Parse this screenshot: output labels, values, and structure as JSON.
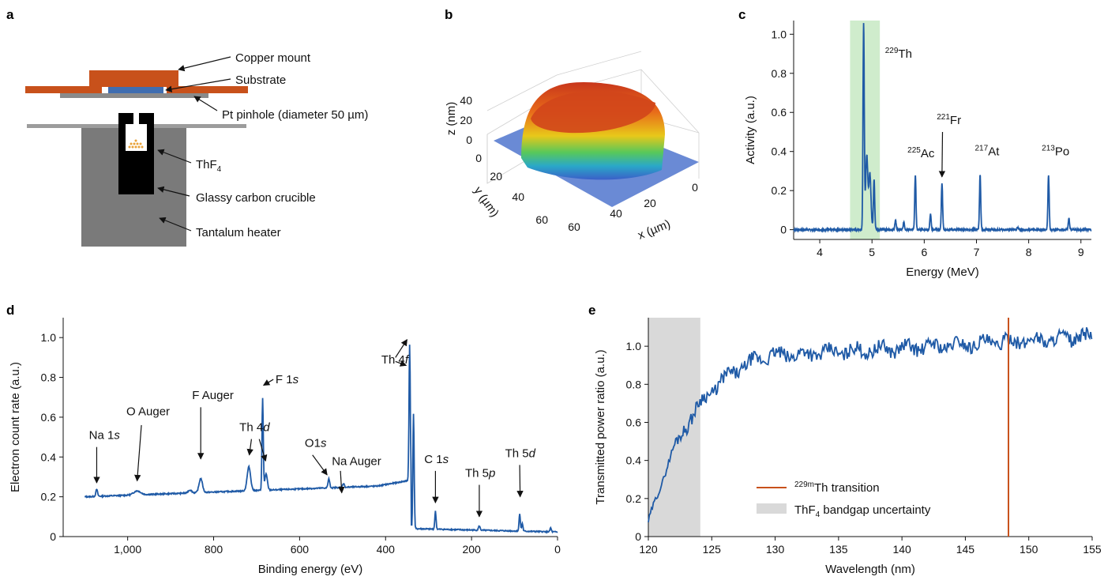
{
  "panels": {
    "a": {
      "label": "a",
      "annotations": {
        "copper_mount": "Copper mount",
        "substrate": "Substrate",
        "pinhole": "Pt pinhole (diameter 50 µm)",
        "thf4_main": "ThF",
        "thf4_sub": "4",
        "crucible": "Glassy carbon crucible",
        "heater": "Tantalum heater"
      },
      "colors": {
        "copper": "#c8511b",
        "substrate": "#3f6db0",
        "pt": "#8a8a8a",
        "heater": "#7a7a7a",
        "crucible": "#000000",
        "thf4": "#e8a23a"
      }
    },
    "b": {
      "label": "b",
      "zlabel": "z (nm)",
      "ylabel": "y (µm)",
      "xlabel": "x (µm)",
      "z_ticks": [
        "40",
        "20",
        "0"
      ],
      "y_ticks": [
        "0",
        "20",
        "40",
        "60"
      ],
      "x_ticks": [
        "0",
        "20",
        "40",
        "60"
      ]
    },
    "c": {
      "label": "c"
    },
    "d": {
      "label": "d"
    },
    "e": {
      "label": "e"
    }
  },
  "chart_data": [
    {
      "id": "c",
      "type": "line",
      "xlabel": "Energy (MeV)",
      "ylabel": "Activity (a.u.)",
      "xlim": [
        3.5,
        9.2
      ],
      "ylim": [
        -0.05,
        1.07
      ],
      "xticks": [
        4,
        5,
        6,
        7,
        8,
        9
      ],
      "yticks": [
        0,
        0.2,
        0.4,
        0.6,
        0.8,
        1.0
      ],
      "ytick_labels": [
        "0",
        "0.2",
        "0.4",
        "0.6",
        "0.8",
        "1.0"
      ],
      "shaded_band": {
        "x": [
          4.58,
          5.15
        ],
        "color": "#cfeccc"
      },
      "series_color": "#1f5aa6",
      "peaks": [
        {
          "x": 4.84,
          "h": 1.0,
          "w": 0.012
        },
        {
          "x": 4.9,
          "h": 0.35,
          "w": 0.02
        },
        {
          "x": 4.96,
          "h": 0.27,
          "w": 0.02
        },
        {
          "x": 5.04,
          "h": 0.25,
          "w": 0.012
        },
        {
          "x": 5.45,
          "h": 0.05,
          "w": 0.012
        },
        {
          "x": 5.61,
          "h": 0.04,
          "w": 0.012
        },
        {
          "x": 5.83,
          "h": 0.28,
          "w": 0.012
        },
        {
          "x": 6.12,
          "h": 0.08,
          "w": 0.012
        },
        {
          "x": 6.34,
          "h": 0.24,
          "w": 0.012
        },
        {
          "x": 7.07,
          "h": 0.28,
          "w": 0.012
        },
        {
          "x": 7.79,
          "h": 0.01,
          "w": 0.012
        },
        {
          "x": 8.38,
          "h": 0.28,
          "w": 0.012
        },
        {
          "x": 8.77,
          "h": 0.06,
          "w": 0.012
        }
      ],
      "annotations": [
        {
          "sup": "229",
          "main": "Th",
          "x": 5.25,
          "y": 0.88
        },
        {
          "sup": "225",
          "main": "Ac",
          "x": 5.68,
          "y": 0.37
        },
        {
          "sup": "221",
          "main": "Fr",
          "x": 6.24,
          "y": 0.54
        },
        {
          "sup": "217",
          "main": "At",
          "x": 6.97,
          "y": 0.38
        },
        {
          "sup": "213",
          "main": "Po",
          "x": 8.25,
          "y": 0.38
        }
      ]
    },
    {
      "id": "d",
      "type": "line",
      "xlabel": "Binding energy (eV)",
      "ylabel": "Electron count rate (a.u.)",
      "xlim": [
        1150,
        0
      ],
      "ylim": [
        0,
        1.1
      ],
      "xticks": [
        1000,
        800,
        600,
        400,
        200,
        0
      ],
      "xtick_labels": [
        "1,000",
        "800",
        "600",
        "400",
        "200",
        "0"
      ],
      "yticks": [
        0,
        0.2,
        0.4,
        0.6,
        0.8,
        1.0
      ],
      "ytick_labels": [
        "0",
        "0.2",
        "0.4",
        "0.6",
        "0.8",
        "1.0"
      ],
      "series_color": "#1f5aa6",
      "peaks": [
        {
          "x": 1072,
          "h": 0.035,
          "w": 2
        },
        {
          "x": 978,
          "h": 0.02,
          "w": 8
        },
        {
          "x": 830,
          "h": 0.07,
          "w": 4
        },
        {
          "x": 855,
          "h": 0.015,
          "w": 4
        },
        {
          "x": 718,
          "h": 0.12,
          "w": 4
        },
        {
          "x": 686,
          "h": 0.46,
          "w": 1.5
        },
        {
          "x": 678,
          "h": 0.08,
          "w": 3
        },
        {
          "x": 532,
          "h": 0.045,
          "w": 2
        },
        {
          "x": 498,
          "h": 0.02,
          "w": 2
        },
        {
          "x": 344,
          "h": 0.68,
          "w": 1.5
        },
        {
          "x": 335,
          "h": 0.58,
          "w": 1.5
        },
        {
          "x": 284,
          "h": 0.09,
          "w": 1.5
        },
        {
          "x": 182,
          "h": 0.02,
          "w": 2
        },
        {
          "x": 88,
          "h": 0.09,
          "w": 1.5
        },
        {
          "x": 82,
          "h": 0.04,
          "w": 1.5
        },
        {
          "x": 16,
          "h": 0.02,
          "w": 1.5
        }
      ],
      "annotations": [
        {
          "parts": [
            [
              "Na 1",
              ""
            ],
            [
              "s",
              "i"
            ]
          ],
          "x": 1090,
          "y": 0.49
        },
        {
          "parts": [
            [
              "O Auger",
              ""
            ]
          ],
          "x": 1003,
          "y": 0.61
        },
        {
          "parts": [
            [
              "F Auger",
              ""
            ]
          ],
          "x": 850,
          "y": 0.69
        },
        {
          "parts": [
            [
              "F 1",
              ""
            ],
            [
              "s",
              "i"
            ]
          ],
          "x": 656,
          "y": 0.77
        },
        {
          "parts": [
            [
              "Th 4",
              ""
            ],
            [
              "d",
              "i"
            ]
          ],
          "x": 740,
          "y": 0.53
        },
        {
          "parts": [
            [
              "Th 4",
              ""
            ],
            [
              "f",
              "i"
            ]
          ],
          "x": 410,
          "y": 0.87
        },
        {
          "parts": [
            [
              "O1",
              ""
            ],
            [
              "s",
              "i"
            ]
          ],
          "x": 588,
          "y": 0.45
        },
        {
          "parts": [
            [
              "Na Auger",
              ""
            ]
          ],
          "x": 525,
          "y": 0.36
        },
        {
          "parts": [
            [
              "C 1",
              ""
            ],
            [
              "s",
              "i"
            ]
          ],
          "x": 310,
          "y": 0.37
        },
        {
          "parts": [
            [
              "Th 5",
              ""
            ],
            [
              "p",
              "i"
            ]
          ],
          "x": 215,
          "y": 0.3
        },
        {
          "parts": [
            [
              "Th 5",
              ""
            ],
            [
              "d",
              "i"
            ]
          ],
          "x": 122,
          "y": 0.4
        }
      ]
    },
    {
      "id": "e",
      "type": "line",
      "xlabel": "Wavelength (nm)",
      "ylabel": "Transmitted power ratio (a.u.)",
      "xlim": [
        120,
        155
      ],
      "ylim": [
        0,
        1.15
      ],
      "xticks": [
        120,
        125,
        130,
        135,
        140,
        145,
        150,
        155
      ],
      "yticks": [
        0,
        0.2,
        0.4,
        0.6,
        0.8,
        1.0
      ],
      "ytick_labels": [
        "0",
        "0.2",
        "0.4",
        "0.6",
        "0.8",
        "1.0"
      ],
      "series_color": "#1f5aa6",
      "shaded_band": {
        "x": [
          120,
          124.1
        ],
        "color": "#d9d9d9"
      },
      "vline": {
        "x": 148.4,
        "color": "#c8511b"
      },
      "legend": [
        {
          "type": "line",
          "color": "#c8511b",
          "sup": "229m",
          "text": "Th transition"
        },
        {
          "type": "box",
          "color": "#d9d9d9",
          "text": "ThF",
          "sub": "4",
          "tail": " bandgap uncertainty"
        }
      ],
      "legend_position": "lower-right"
    }
  ]
}
